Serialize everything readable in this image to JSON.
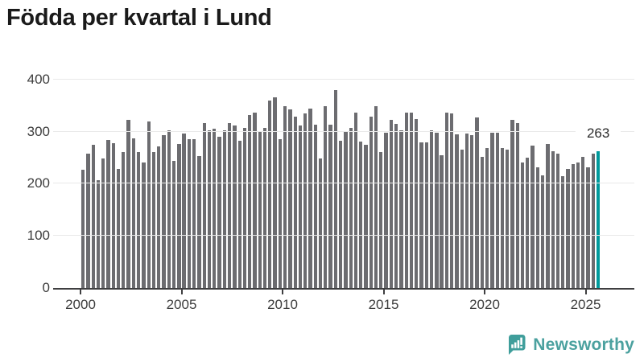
{
  "title": "Födda per kvartal i Lund",
  "chart_data": {
    "type": "bar",
    "title": "Födda per kvartal i Lund",
    "x_start": "2000 Q1",
    "x_end": "2025 Q3",
    "x_tick_labels": [
      "2000",
      "2005",
      "2010",
      "2015",
      "2020",
      "2025"
    ],
    "y_tick_labels": [
      "0",
      "100",
      "200",
      "300",
      "400"
    ],
    "y_ticks": [
      0,
      100,
      200,
      300,
      400
    ],
    "ylim": [
      0,
      400
    ],
    "grid": true,
    "legend_position": "none",
    "bar_color": "#6c6c70",
    "highlight_color": "#009a9c",
    "values": [
      227,
      258,
      275,
      206,
      248,
      284,
      277,
      228,
      261,
      322,
      287,
      260,
      240,
      319,
      260,
      272,
      293,
      303,
      243,
      276,
      296,
      285,
      285,
      253,
      317,
      303,
      306,
      290,
      303,
      317,
      312,
      283,
      307,
      332,
      336,
      300,
      307,
      359,
      365,
      285,
      348,
      343,
      329,
      312,
      334,
      344,
      313,
      248,
      348,
      313,
      380,
      283,
      299,
      307,
      337,
      281,
      274,
      328,
      349,
      261,
      298,
      322,
      314,
      303,
      336,
      336,
      324,
      279,
      279,
      302,
      298,
      254,
      336,
      334,
      294,
      266,
      296,
      293,
      327,
      251,
      268,
      298,
      297,
      269,
      265,
      322,
      316,
      240,
      250,
      273,
      232,
      216,
      276,
      262,
      258,
      214,
      229,
      238,
      240,
      252,
      231,
      257,
      263
    ],
    "highlight": {
      "quarter": "2025 Q3",
      "value": 263,
      "label": "263"
    }
  },
  "branding": {
    "logo_text": "Newsworthy",
    "logo_color": "#4ba19f",
    "logo_icon": "speech-bubble-bar-chart"
  }
}
